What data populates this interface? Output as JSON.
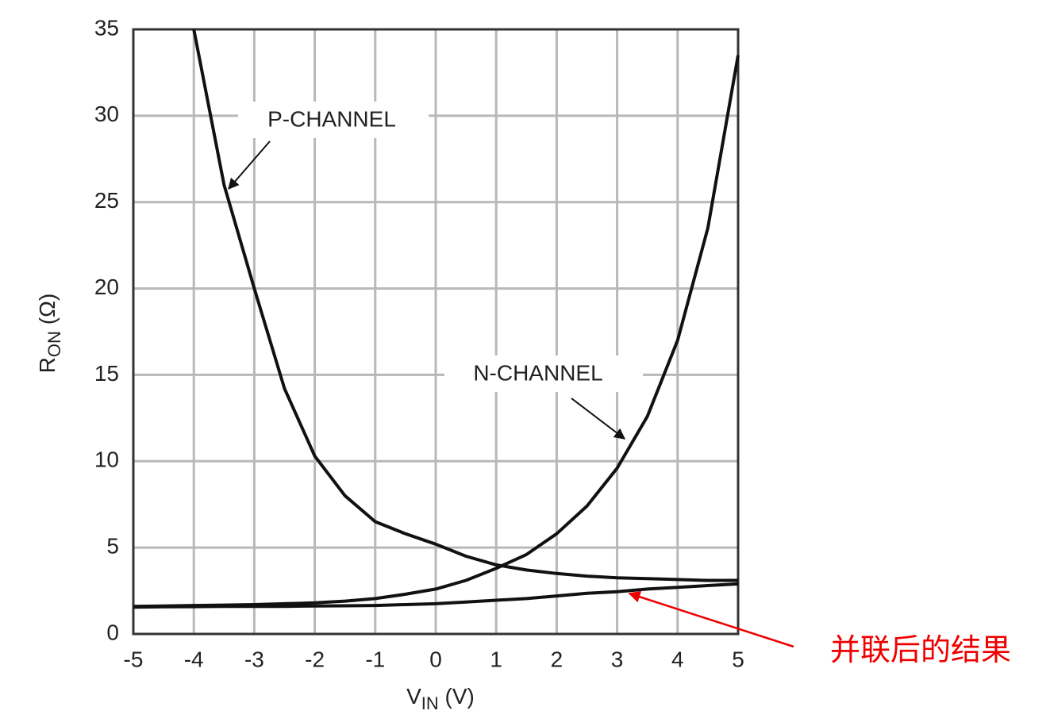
{
  "chart_data": {
    "type": "line",
    "ylabel": {
      "text": "R",
      "subscript": "ON",
      "suffix": " (Ω)"
    },
    "xlabel": {
      "text": "V",
      "subscript": "IN",
      "suffix": " (V)"
    },
    "x": [
      -5,
      -4.5,
      -4,
      -3.5,
      -3,
      -2.5,
      -2,
      -1.5,
      -1,
      -0.5,
      0,
      0.5,
      1,
      1.5,
      2,
      2.5,
      3,
      3.5,
      4,
      4.5,
      5
    ],
    "series": [
      {
        "name": "P-CHANNEL",
        "color": "#111111",
        "values": [
          null,
          null,
          35,
          26,
          20,
          14.2,
          10.3,
          8.0,
          6.5,
          5.8,
          5.2,
          4.5,
          4.0,
          3.7,
          3.5,
          3.35,
          3.25,
          3.2,
          3.15,
          3.1,
          3.1
        ]
      },
      {
        "name": "N-CHANNEL",
        "color": "#111111",
        "values": [
          1.6,
          1.62,
          1.65,
          1.67,
          1.7,
          1.75,
          1.8,
          1.9,
          2.05,
          2.3,
          2.6,
          3.1,
          3.8,
          4.6,
          5.8,
          7.4,
          9.6,
          12.6,
          17.0,
          23.5,
          33.5
        ]
      },
      {
        "name": "并联后的结果",
        "color": "#111111",
        "values": [
          1.55,
          1.57,
          1.58,
          1.6,
          1.6,
          1.6,
          1.62,
          1.63,
          1.65,
          1.7,
          1.75,
          1.85,
          1.95,
          2.05,
          2.2,
          2.35,
          2.45,
          2.6,
          2.7,
          2.8,
          2.9
        ]
      }
    ],
    "xlim": [
      -5,
      5
    ],
    "xticks": [
      -5,
      -4,
      -3,
      -2,
      -1,
      0,
      1,
      2,
      3,
      4,
      5
    ],
    "ylim": [
      0,
      35
    ],
    "yticks": [
      0,
      5,
      10,
      15,
      20,
      25,
      30,
      35
    ],
    "grid": true
  }
}
